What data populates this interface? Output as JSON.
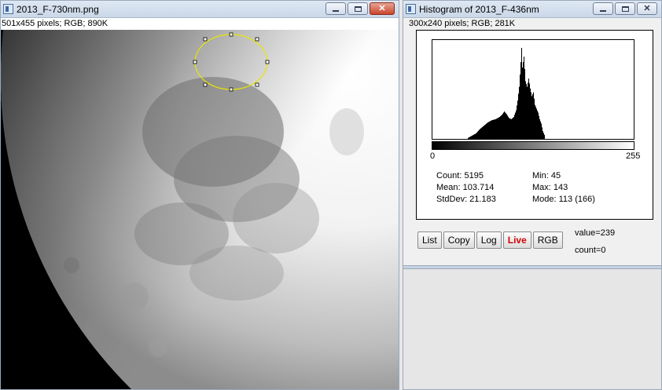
{
  "image_window": {
    "title": "2013_F-730nm.png",
    "info": "501x455 pixels; RGB; 890K",
    "icon": "imagej-icon"
  },
  "histogram_window": {
    "title": "Histogram of 2013_F-436nm",
    "info": "300x240 pixels; RGB; 281K",
    "icon": "imagej-icon",
    "axis_min_label": "0",
    "axis_max_label": "255",
    "stats": {
      "count": "Count: 5195",
      "mean": "Mean: 103.714",
      "stddev": "StdDev: 21.183",
      "min": "Min: 45",
      "max": "Max: 143",
      "mode": "Mode: 113 (166)"
    },
    "buttons": {
      "list": "List",
      "copy": "Copy",
      "log": "Log",
      "live": "Live",
      "rgb": "RGB"
    },
    "value_readout": "value=239",
    "count_readout": "count=0"
  },
  "chart_data": {
    "type": "bar",
    "xlim": [
      0,
      255
    ],
    "x": [
      45,
      50,
      55,
      60,
      65,
      70,
      75,
      80,
      85,
      88,
      91,
      94,
      97,
      100,
      103,
      106,
      108,
      110,
      112,
      113,
      114,
      116,
      118,
      120,
      122,
      124,
      126,
      128,
      130,
      132,
      134,
      136,
      138,
      140,
      143
    ],
    "values": [
      2,
      6,
      10,
      18,
      24,
      30,
      34,
      36,
      40,
      44,
      50,
      45,
      38,
      36,
      40,
      52,
      70,
      95,
      140,
      166,
      130,
      150,
      105,
      95,
      110,
      92,
      78,
      85,
      62,
      55,
      48,
      36,
      28,
      14,
      4
    ]
  }
}
